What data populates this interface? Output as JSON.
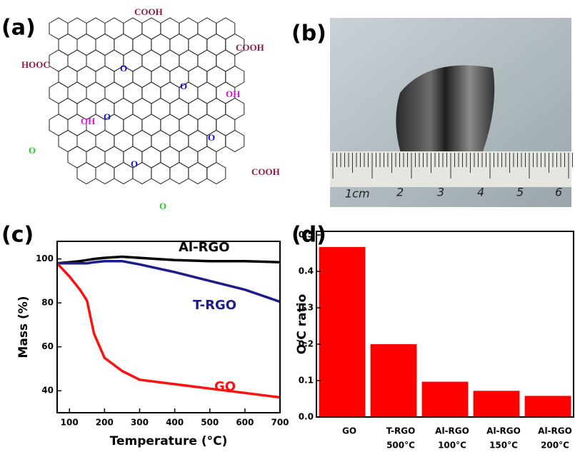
{
  "figure": {
    "panel_labels": [
      "(a)",
      "(b)",
      "(c)",
      "(d)"
    ],
    "structure": {
      "groups": [
        "COOH",
        "COOH",
        "HOOC",
        "O",
        "O",
        "OH",
        "O",
        "OH",
        "O",
        "O",
        "O",
        "COOH",
        "O"
      ]
    },
    "photo": {
      "ruler_labels": [
        "1cm",
        "2",
        "3",
        "4",
        "5",
        "6"
      ]
    }
  },
  "chart_data": [
    {
      "type": "line",
      "x_label": "Temperature (°C)",
      "y_label": "Mass (%)",
      "x": [
        65,
        100,
        130,
        150,
        170,
        200,
        250,
        300,
        400,
        500,
        600,
        700
      ],
      "series": [
        {
          "name": "Al-RGO",
          "color": "#000000",
          "values": [
            98,
            98.5,
            99,
            99.5,
            100,
            100.5,
            101,
            100.5,
            99.5,
            99,
            99,
            98.5
          ]
        },
        {
          "name": "T-RGO",
          "color": "#1c1c8c",
          "values": [
            98,
            98,
            98,
            98,
            98.5,
            99,
            99,
            97.5,
            94,
            90,
            86,
            80.5
          ]
        },
        {
          "name": "GO",
          "color": "#ff1010",
          "values": [
            98,
            92,
            86,
            81,
            66,
            55,
            49,
            45,
            43,
            41,
            39,
            37
          ]
        }
      ],
      "xlim": [
        65,
        700
      ],
      "xticks": [
        100,
        200,
        300,
        400,
        500,
        600,
        700
      ],
      "ylim": [
        30,
        108
      ],
      "yticks": [
        40,
        60,
        80,
        100
      ]
    },
    {
      "type": "bar",
      "y_label": "O/C ratio",
      "categories": [
        "GO",
        "T-RGO",
        "Al-RGO",
        "Al-RGO",
        "Al-RGO"
      ],
      "sublabels": [
        null,
        "500°C",
        "100°C",
        "150°C",
        "200°C"
      ],
      "values": [
        0.467,
        0.2,
        0.097,
        0.072,
        0.058
      ],
      "color": "#ff0000",
      "ylim": [
        0,
        0.51
      ],
      "yticks": [
        {
          "value": 0,
          "label": "0.0"
        },
        0.1,
        0.2,
        0.3,
        0.4,
        0.5
      ]
    }
  ]
}
